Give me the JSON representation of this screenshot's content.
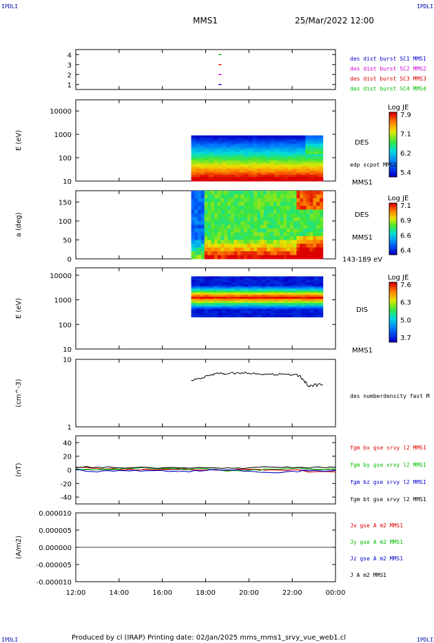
{
  "header": {
    "corner_tl": "IPDLI",
    "corner_tr": "IPDLI",
    "corner_bl": "IPDLI",
    "corner_br": "IPDLI",
    "mission": "MMS1",
    "datetime": "25/Mar/2022 12:00"
  },
  "footer": {
    "text": "Produced by cl (IRAP)   Printing date: 02/Jan/2025   mms_mms1_srvy_vue_web1.cl"
  },
  "colors": {
    "mms1": "#0000cc",
    "mms2": "#cc00cc",
    "mms3": "#dd0000",
    "mms4": "#00bb00",
    "bx": "#dd0000",
    "by": "#00bb00",
    "bz": "#0000cc",
    "bt": "#000000"
  },
  "xaxis": {
    "ticks": [
      "12:00",
      "14:00",
      "16:00",
      "18:00",
      "20:00",
      "22:00",
      "00:00"
    ]
  },
  "chart_data": [
    {
      "type": "scatter",
      "panel": "burst",
      "yticks": [
        "1",
        "2",
        "3",
        "4"
      ],
      "ylim": [
        0.5,
        4.5
      ],
      "series": [
        {
          "name": "des dist burst SC1 MMS1",
          "color": "#0000cc",
          "x": [
            "18:40"
          ],
          "values": [
            1
          ]
        },
        {
          "name": "des dist burst SC2 MMS2",
          "color": "#cc00cc",
          "x": [
            "18:40"
          ],
          "values": [
            2
          ]
        },
        {
          "name": "des dist burst SC3 MMS3",
          "color": "#dd0000",
          "x": [
            "18:40"
          ],
          "values": [
            3
          ]
        },
        {
          "name": "des dist burst SC4 MMS4",
          "color": "#00bb00",
          "x": [
            "18:40"
          ],
          "values": [
            4
          ]
        }
      ]
    },
    {
      "type": "heatmap",
      "panel": "des-energy",
      "ylabel": "E (eV)",
      "yscale": "log",
      "yticks": [
        "10",
        "100",
        "1000",
        "10000"
      ],
      "time_range": [
        "17:20",
        "23:25"
      ],
      "energy_range": [
        10,
        900
      ],
      "right_labels": [
        "DES",
        "edp scpot MMS1",
        "MMS1"
      ],
      "colorbar": {
        "title": "Log JE",
        "ticks": [
          "7.9",
          "7.1",
          "6.2",
          "5.4"
        ]
      }
    },
    {
      "type": "heatmap",
      "panel": "des-pitch",
      "ylabel": "a (deg)",
      "yticks": [
        "0",
        "50",
        "100",
        "150"
      ],
      "ylim": [
        0,
        180
      ],
      "time_range": [
        "17:20",
        "23:25"
      ],
      "right_labels": [
        "DES",
        "MMS1",
        "143-189 eV"
      ],
      "colorbar": {
        "title": "Log JE",
        "ticks": [
          "7.1",
          "6.9",
          "6.6",
          "6.4"
        ]
      }
    },
    {
      "type": "heatmap",
      "panel": "dis-energy",
      "ylabel": "E (eV)",
      "yscale": "log",
      "yticks": [
        "10",
        "100",
        "1000",
        "10000"
      ],
      "time_range": [
        "17:20",
        "23:25"
      ],
      "energy_range": [
        200,
        9000
      ],
      "right_labels": [
        "DIS",
        "MMS1"
      ],
      "colorbar": {
        "title": "Log JE",
        "ticks": [
          "7.6",
          "6.3",
          "5.0",
          "3.7"
        ]
      }
    },
    {
      "type": "line",
      "panel": "density",
      "ylabel": "(cm^-3)",
      "yscale": "log",
      "yticks": [
        "1",
        "10"
      ],
      "ylim": [
        1,
        10
      ],
      "series": [
        {
          "name": "des numberdensity fast M",
          "color": "#000000",
          "x": [
            "17:20",
            "17:50",
            "18:20",
            "18:40",
            "19:00",
            "19:30",
            "20:00",
            "20:30",
            "21:00",
            "21:30",
            "22:00",
            "22:20",
            "22:30",
            "22:45",
            "23:00",
            "23:25"
          ],
          "values": [
            4.9,
            5.3,
            5.8,
            6.3,
            6.1,
            6.4,
            6.2,
            6.0,
            6.0,
            6.0,
            5.9,
            5.7,
            5.0,
            4.0,
            4.2,
            4.2
          ]
        }
      ]
    },
    {
      "type": "line",
      "panel": "magnetic-field",
      "ylabel": "(nT)",
      "yticks": [
        "-40",
        "-20",
        "0",
        "20",
        "40"
      ],
      "ylim": [
        -50,
        50
      ],
      "series": [
        {
          "name": "fgm bx gse srvy l2 MMS1",
          "color": "#dd0000",
          "x": [
            "12:00",
            "13:00",
            "14:00",
            "15:00",
            "16:00",
            "17:00",
            "18:00",
            "19:00",
            "20:00",
            "21:00",
            "22:00",
            "23:00",
            "00:00"
          ],
          "values": [
            3,
            2,
            1,
            0,
            1,
            2,
            0,
            -1,
            1,
            0,
            0,
            -3,
            -3
          ]
        },
        {
          "name": "fgm by gse srvy l2 MMS1",
          "color": "#00bb00",
          "x": [
            "12:00",
            "13:00",
            "14:00",
            "15:00",
            "16:00",
            "17:00",
            "18:00",
            "19:00",
            "20:00",
            "21:00",
            "22:00",
            "23:00",
            "00:00"
          ],
          "values": [
            2,
            0,
            1,
            3,
            2,
            1,
            2,
            -2,
            -1,
            1,
            2,
            1,
            2
          ]
        },
        {
          "name": "fgm bz gse srvy l2 MMS1",
          "color": "#0000cc",
          "x": [
            "12:00",
            "13:00",
            "14:00",
            "15:00",
            "16:00",
            "17:00",
            "18:00",
            "19:00",
            "20:00",
            "21:00",
            "22:00",
            "23:00",
            "00:00"
          ],
          "values": [
            1,
            -3,
            -1,
            -2,
            -1,
            -2,
            -1,
            0,
            -2,
            -4,
            -2,
            -1,
            -1
          ]
        },
        {
          "name": "fgm bt gse srvy l2 MMS1",
          "color": "#000000",
          "x": [
            "12:00",
            "13:00",
            "14:00",
            "15:00",
            "16:00",
            "17:00",
            "18:00",
            "19:00",
            "20:00",
            "21:00",
            "22:00",
            "23:00",
            "00:00"
          ],
          "values": [
            4,
            4,
            3,
            4,
            3,
            3,
            3,
            3,
            3,
            4,
            3,
            4,
            4
          ]
        }
      ]
    },
    {
      "type": "line",
      "panel": "current",
      "ylabel": "(A/m2)",
      "yticks": [
        "-0.000010",
        "-0.000005",
        "0.000000",
        "0.000005",
        "0.000010"
      ],
      "ylim": [
        -1e-05,
        1e-05
      ],
      "series": [
        {
          "name": "Jx gse A m2 MMS1",
          "color": "#dd0000",
          "x": [
            "12:00",
            "00:00"
          ],
          "values": [
            0,
            0
          ]
        },
        {
          "name": "Jy gse A m2 MMS1",
          "color": "#00bb00",
          "x": [
            "12:00",
            "00:00"
          ],
          "values": [
            0,
            0
          ]
        },
        {
          "name": "Jz gse A m2 MMS1",
          "color": "#0000cc",
          "x": [
            "12:00",
            "00:00"
          ],
          "values": [
            0,
            0
          ]
        },
        {
          "name": "J A m2 MMS1",
          "color": "#000000",
          "x": [
            "12:00",
            "00:00"
          ],
          "values": [
            0,
            0
          ]
        }
      ]
    }
  ]
}
